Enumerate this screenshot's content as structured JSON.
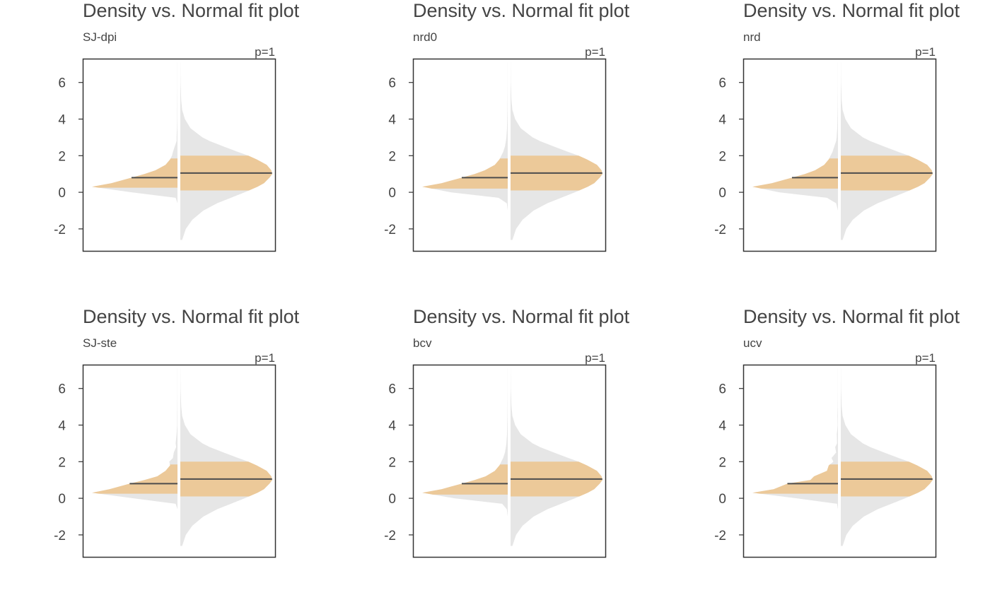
{
  "colors": {
    "shade": "#e6e6e6",
    "accent": "#ecc999",
    "frame": "#333333",
    "text": "#444444",
    "line": "#4d4d4d"
  },
  "chart_data": [
    {
      "type": "area",
      "title": "Density vs. Normal fit plot",
      "subtitle": "SJ-dpi",
      "annotation": "p=1",
      "ylim": [
        -3.2,
        7.3
      ],
      "yticks": [
        -2,
        0,
        2,
        4,
        6
      ],
      "y": [
        -2.6,
        -2.0,
        -1.5,
        -1.0,
        -0.6,
        -0.3,
        0.0,
        0.3,
        0.5,
        0.8,
        1.0,
        1.2,
        1.5,
        1.8,
        2.0,
        2.2,
        2.5,
        2.8,
        3.0,
        3.5,
        4.0,
        4.5,
        5.0,
        6.0,
        7.1
      ],
      "density": [
        0,
        0,
        0,
        0,
        0,
        0.02,
        0.5,
        0.93,
        0.72,
        0.5,
        0.36,
        0.24,
        0.13,
        0.08,
        0.06,
        0.05,
        0.03,
        0.01,
        0.01,
        0.005,
        0.003,
        0.003,
        0.002,
        0.001,
        0.001
      ],
      "normal_fit": [
        0.02,
        0.06,
        0.13,
        0.25,
        0.4,
        0.55,
        0.7,
        0.84,
        0.91,
        0.97,
        1.0,
        0.99,
        0.94,
        0.83,
        0.74,
        0.63,
        0.47,
        0.32,
        0.24,
        0.11,
        0.05,
        0.02,
        0.01,
        0.002,
        0.001
      ],
      "density_band": [
        0.25,
        1.85
      ],
      "fit_band": [
        0.1,
        2.0
      ],
      "density_mean": 0.8,
      "fit_mean": 1.05
    },
    {
      "type": "area",
      "title": "Density vs. Normal fit plot",
      "subtitle": "nrd0",
      "annotation": "p=1",
      "ylim": [
        -3.2,
        7.3
      ],
      "yticks": [
        -2,
        0,
        2,
        4,
        6
      ],
      "y": [
        -2.6,
        -2.0,
        -1.5,
        -1.0,
        -0.6,
        -0.3,
        0.0,
        0.3,
        0.5,
        0.8,
        1.0,
        1.2,
        1.5,
        1.8,
        2.0,
        2.2,
        2.5,
        2.8,
        3.0,
        3.5,
        4.0,
        4.5,
        5.0,
        6.0,
        7.1
      ],
      "density": [
        0,
        0,
        0,
        0,
        0.01,
        0.1,
        0.62,
        0.93,
        0.72,
        0.5,
        0.36,
        0.25,
        0.14,
        0.09,
        0.07,
        0.05,
        0.03,
        0.02,
        0.015,
        0.008,
        0.005,
        0.003,
        0.002,
        0.001,
        0.001
      ],
      "normal_fit": [
        0.02,
        0.06,
        0.13,
        0.25,
        0.4,
        0.55,
        0.7,
        0.84,
        0.91,
        0.97,
        1.0,
        0.99,
        0.94,
        0.83,
        0.74,
        0.63,
        0.47,
        0.32,
        0.24,
        0.11,
        0.05,
        0.02,
        0.01,
        0.002,
        0.001
      ],
      "density_band": [
        0.2,
        1.85
      ],
      "fit_band": [
        0.1,
        2.0
      ],
      "density_mean": 0.8,
      "fit_mean": 1.05
    },
    {
      "type": "area",
      "title": "Density vs. Normal fit plot",
      "subtitle": "nrd",
      "annotation": "p=1",
      "ylim": [
        -3.2,
        7.3
      ],
      "yticks": [
        -2,
        0,
        2,
        4,
        6
      ],
      "y": [
        -2.6,
        -2.0,
        -1.5,
        -1.0,
        -0.6,
        -0.3,
        0.0,
        0.3,
        0.5,
        0.8,
        1.0,
        1.2,
        1.5,
        1.8,
        2.0,
        2.2,
        2.5,
        2.8,
        3.0,
        3.5,
        4.0,
        4.5,
        5.0,
        6.0,
        7.1
      ],
      "density": [
        0,
        0,
        0,
        0,
        0.02,
        0.12,
        0.64,
        0.93,
        0.72,
        0.5,
        0.36,
        0.25,
        0.15,
        0.1,
        0.08,
        0.06,
        0.04,
        0.02,
        0.015,
        0.008,
        0.005,
        0.003,
        0.002,
        0.001,
        0.001
      ],
      "normal_fit": [
        0.02,
        0.06,
        0.13,
        0.25,
        0.4,
        0.55,
        0.7,
        0.84,
        0.91,
        0.97,
        1.0,
        0.99,
        0.94,
        0.83,
        0.74,
        0.63,
        0.47,
        0.32,
        0.24,
        0.11,
        0.05,
        0.02,
        0.01,
        0.002,
        0.001
      ],
      "density_band": [
        0.2,
        1.85
      ],
      "fit_band": [
        0.1,
        2.0
      ],
      "density_mean": 0.8,
      "fit_mean": 1.05
    },
    {
      "type": "area",
      "title": "Density vs. Normal fit plot",
      "subtitle": "SJ-ste",
      "annotation": "p=1",
      "ylim": [
        -3.2,
        7.3
      ],
      "yticks": [
        -2,
        0,
        2,
        4,
        6
      ],
      "y": [
        -2.6,
        -2.0,
        -1.5,
        -1.0,
        -0.6,
        -0.3,
        0.0,
        0.3,
        0.5,
        0.8,
        1.0,
        1.2,
        1.5,
        1.8,
        2.0,
        2.2,
        2.5,
        2.8,
        3.0,
        3.5,
        4.0,
        4.5,
        5.0,
        6.0,
        7.1
      ],
      "density": [
        0,
        0,
        0,
        0,
        0,
        0.02,
        0.48,
        0.93,
        0.74,
        0.52,
        0.36,
        0.22,
        0.13,
        0.08,
        0.09,
        0.05,
        0.04,
        0.015,
        0.02,
        0.01,
        0.004,
        0.004,
        0.002,
        0.001,
        0.001
      ],
      "normal_fit": [
        0.02,
        0.06,
        0.13,
        0.25,
        0.4,
        0.55,
        0.7,
        0.84,
        0.91,
        0.97,
        1.0,
        0.99,
        0.94,
        0.83,
        0.74,
        0.63,
        0.47,
        0.32,
        0.24,
        0.11,
        0.05,
        0.02,
        0.01,
        0.002,
        0.001
      ],
      "density_band": [
        0.25,
        1.85
      ],
      "fit_band": [
        0.1,
        2.0
      ],
      "density_mean": 0.8,
      "fit_mean": 1.05
    },
    {
      "type": "area",
      "title": "Density vs. Normal fit plot",
      "subtitle": "bcv",
      "annotation": "p=1",
      "ylim": [
        -3.2,
        7.3
      ],
      "yticks": [
        -2,
        0,
        2,
        4,
        6
      ],
      "y": [
        -2.6,
        -2.0,
        -1.5,
        -1.0,
        -0.6,
        -0.3,
        0.0,
        0.3,
        0.5,
        0.8,
        1.0,
        1.2,
        1.5,
        1.8,
        2.0,
        2.2,
        2.5,
        2.8,
        3.0,
        3.5,
        4.0,
        4.5,
        5.0,
        6.0,
        7.1
      ],
      "density": [
        0,
        0,
        0,
        0,
        0.01,
        0.06,
        0.58,
        0.93,
        0.72,
        0.5,
        0.36,
        0.24,
        0.14,
        0.09,
        0.07,
        0.05,
        0.03,
        0.02,
        0.015,
        0.008,
        0.005,
        0.003,
        0.002,
        0.001,
        0.001
      ],
      "normal_fit": [
        0.02,
        0.06,
        0.13,
        0.25,
        0.4,
        0.55,
        0.7,
        0.84,
        0.91,
        0.97,
        1.0,
        0.99,
        0.94,
        0.83,
        0.74,
        0.63,
        0.47,
        0.32,
        0.24,
        0.11,
        0.05,
        0.02,
        0.01,
        0.002,
        0.001
      ],
      "density_band": [
        0.2,
        1.85
      ],
      "fit_band": [
        0.1,
        2.0
      ],
      "density_mean": 0.8,
      "fit_mean": 1.05
    },
    {
      "type": "area",
      "title": "Density vs. Normal fit plot",
      "subtitle": "ucv",
      "annotation": "p=1",
      "ylim": [
        -3.2,
        7.3
      ],
      "yticks": [
        -2,
        0,
        2,
        4,
        6
      ],
      "y": [
        -2.6,
        -2.0,
        -1.5,
        -1.0,
        -0.6,
        -0.3,
        0.0,
        0.3,
        0.5,
        0.8,
        1.0,
        1.2,
        1.5,
        1.8,
        2.0,
        2.2,
        2.5,
        2.8,
        3.0,
        3.5,
        4.0,
        4.5,
        5.0,
        6.0,
        7.1
      ],
      "density": [
        0,
        0,
        0,
        0,
        0,
        0.01,
        0.45,
        0.93,
        0.7,
        0.55,
        0.3,
        0.26,
        0.12,
        0.1,
        0.05,
        0.07,
        0.02,
        0.03,
        0.01,
        0.012,
        0.003,
        0.005,
        0.002,
        0.001,
        0.001
      ],
      "normal_fit": [
        0.02,
        0.06,
        0.13,
        0.25,
        0.4,
        0.55,
        0.7,
        0.84,
        0.91,
        0.97,
        1.0,
        0.99,
        0.94,
        0.83,
        0.74,
        0.63,
        0.47,
        0.32,
        0.24,
        0.11,
        0.05,
        0.02,
        0.01,
        0.002,
        0.001
      ],
      "density_band": [
        0.25,
        1.85
      ],
      "fit_band": [
        0.1,
        2.0
      ],
      "density_mean": 0.8,
      "fit_mean": 1.05
    }
  ]
}
